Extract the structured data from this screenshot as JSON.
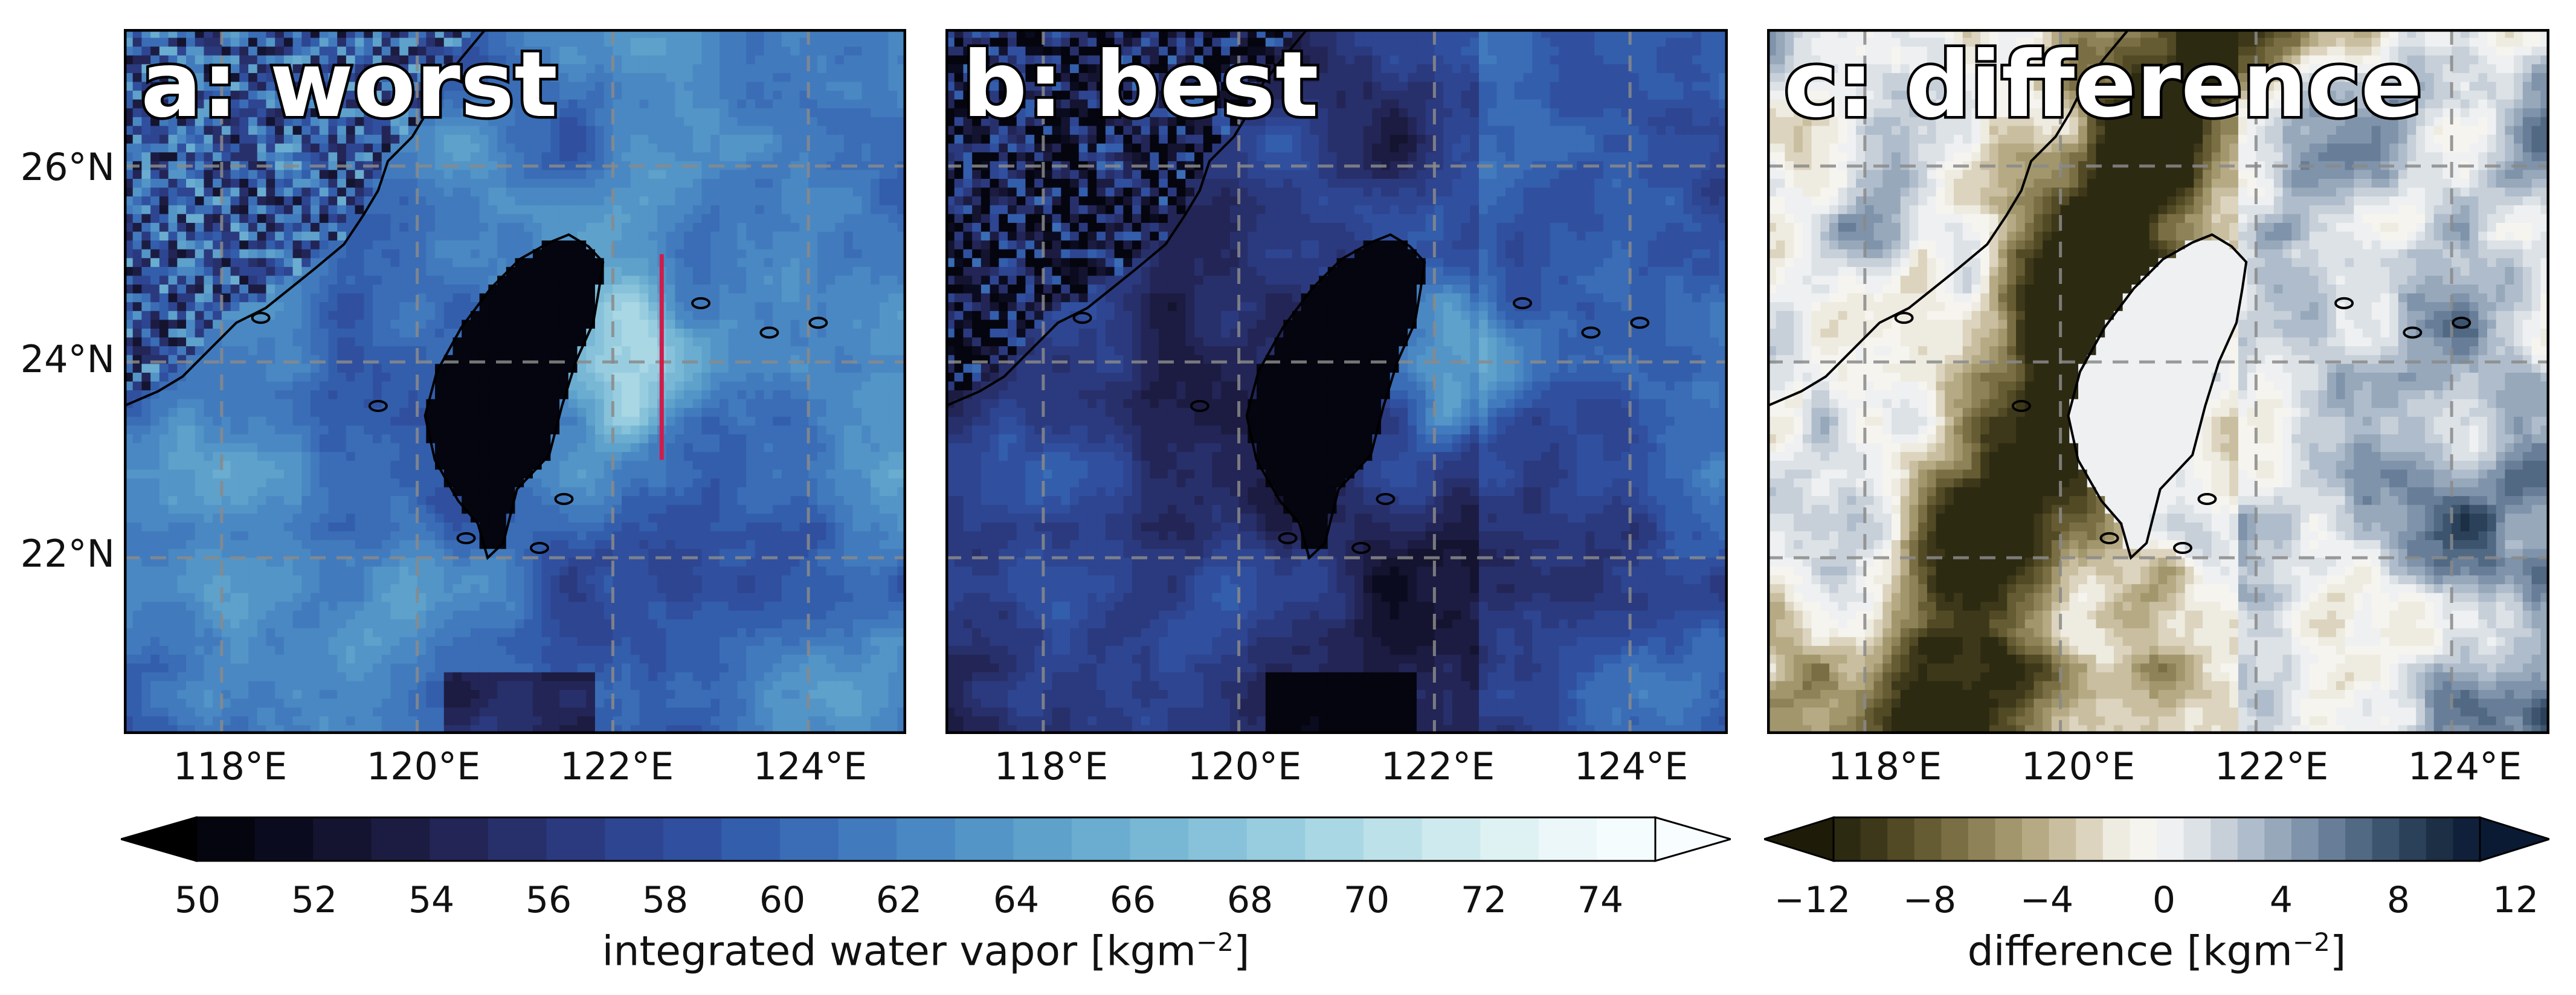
{
  "panels": [
    {
      "id": "a",
      "title": "a: worst",
      "palette": "ice",
      "darkness": 0.0
    },
    {
      "id": "b",
      "title": "b: best",
      "palette": "ice",
      "darkness": 0.22
    },
    {
      "id": "c",
      "title": "c: difference",
      "palette": "diff",
      "darkness": 0.0
    }
  ],
  "y_ticks": [
    "26°N",
    "24°N",
    "22°N"
  ],
  "x_ticks": [
    "118°E",
    "120°E",
    "122°E",
    "124°E"
  ],
  "map_extent": {
    "lon_min": 117.0,
    "lon_max": 125.0,
    "lat_min": 20.2,
    "lat_max": 27.4
  },
  "transect": {
    "lon": 122.5,
    "lat_start": 23.0,
    "lat_end": 25.1,
    "color": "#d01c4b"
  },
  "colorbar_ivw": {
    "label_text": "integrated water vapor [kgm",
    "label_exp": "−2",
    "label_close": "]",
    "ticks": [
      "50",
      "52",
      "54",
      "56",
      "58",
      "60",
      "62",
      "64",
      "66",
      "68",
      "70",
      "72",
      "74"
    ],
    "min": 50,
    "max": 75,
    "step": 1,
    "colors": [
      "#05050f",
      "#0b0b20",
      "#141430",
      "#1c1c42",
      "#232556",
      "#28306b",
      "#2b3a7f",
      "#2e4591",
      "#30509f",
      "#335eac",
      "#3a6db6",
      "#427bbd",
      "#4a88c3",
      "#5395c7",
      "#5ea1cb",
      "#6aadd0",
      "#78b8d5",
      "#87c2da",
      "#98cde0",
      "#aad7e4",
      "#bde1e9",
      "#cfeaee",
      "#def1f3",
      "#ebf7f9",
      "#f5fcfd"
    ],
    "under": "#000000",
    "over": "#f8feff"
  },
  "colorbar_diff": {
    "label_text": "difference [kgm",
    "label_exp": "−2",
    "label_close": "]",
    "ticks": [
      "−12",
      "−8",
      "−4",
      "0",
      "4",
      "8",
      "12"
    ],
    "min": -12,
    "max": 12,
    "colors": [
      "#2d2a12",
      "#3e381a",
      "#524a25",
      "#665c33",
      "#7a6e44",
      "#8e8258",
      "#a2966d",
      "#b6aa85",
      "#c9bfa0",
      "#dcd4be",
      "#eeebe0",
      "#f6f4ef",
      "#eef0f2",
      "#dde2e7",
      "#c7d0d9",
      "#afbccb",
      "#97a8bb",
      "#7f93aa",
      "#687e98",
      "#526984",
      "#3d546f",
      "#2b4159",
      "#1c2f44",
      "#11203a"
    ],
    "under": "#1e1c08",
    "over": "#0b1a33"
  }
}
